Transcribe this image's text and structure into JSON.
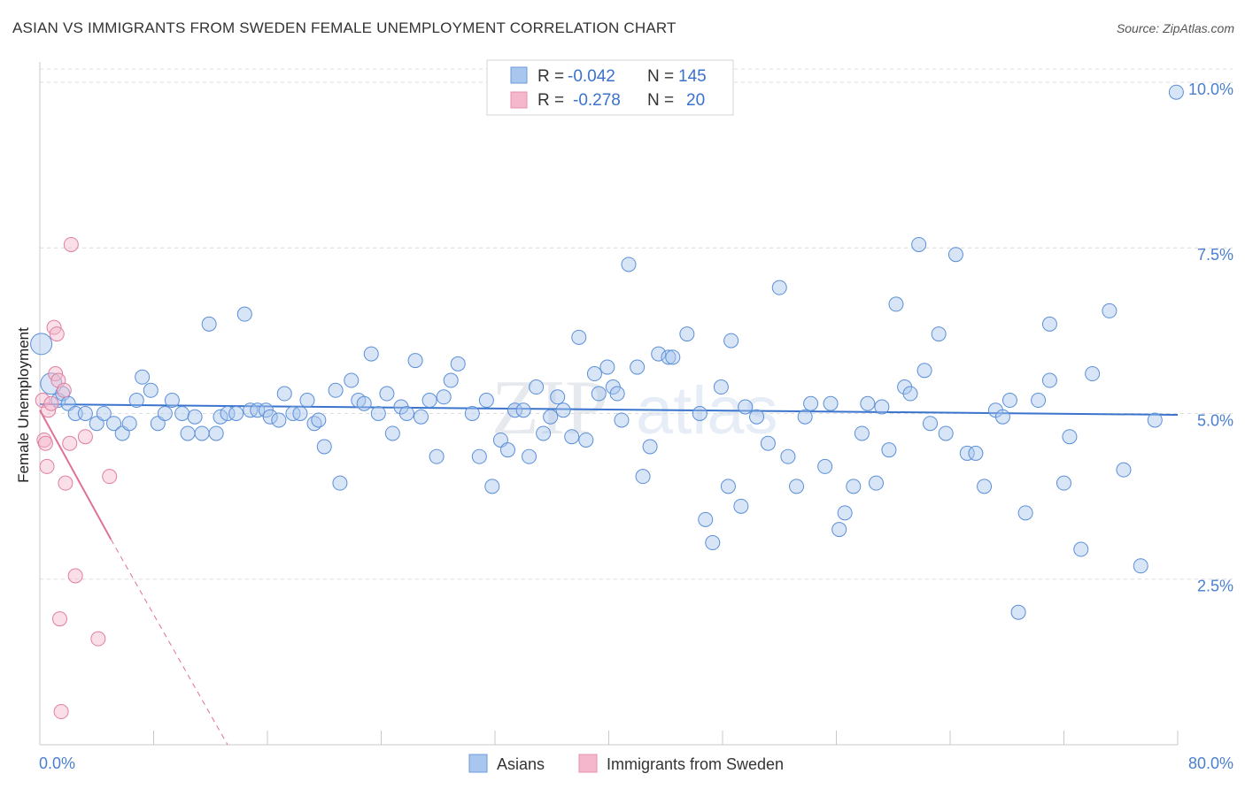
{
  "header": {
    "title": "ASIAN VS IMMIGRANTS FROM SWEDEN FEMALE UNEMPLOYMENT CORRELATION CHART",
    "source": "Source: ZipAtlas.com"
  },
  "legend": {
    "rows": [
      {
        "r_label": "R =",
        "r_value": "-0.042",
        "n_label": "N =",
        "n_value": "145",
        "color": "#a9c6ee"
      },
      {
        "r_label": "R =",
        "r_value": "-0.278",
        "n_label": "N =",
        "n_value": "20",
        "color": "#f5b7cb"
      }
    ]
  },
  "bottom_legend": [
    {
      "label": "Asians",
      "color": "#a9c6ee"
    },
    {
      "label": "Immigrants from Sweden",
      "color": "#f5b7cb"
    }
  ],
  "watermark": {
    "part1": "ZIP",
    "part2": "atlas"
  },
  "chart_data": {
    "type": "scatter",
    "title": "ASIAN VS IMMIGRANTS FROM SWEDEN FEMALE UNEMPLOYMENT CORRELATION CHART",
    "ylabel": "Female Unemployment",
    "xlabel": "",
    "xlim": [
      0,
      80
    ],
    "ylim": [
      0,
      10.2
    ],
    "x_tick_labels": [
      "0.0%",
      "80.0%"
    ],
    "y_ticks": [
      2.5,
      5.0,
      7.5,
      10.0
    ],
    "y_tick_labels": [
      "2.5%",
      "5.0%",
      "7.5%",
      "10.0%"
    ],
    "grid": "horizontal dashed",
    "series": [
      {
        "name": "Asians",
        "color": "#a9c6ee",
        "stroke": "#5b8fd8",
        "trend": {
          "x": [
            0,
            80
          ],
          "y": [
            5.14,
            4.98
          ],
          "color": "#3a74cc"
        },
        "points": [
          [
            0.1,
            6.05
          ],
          [
            0.8,
            5.45
          ],
          [
            1.3,
            5.2
          ],
          [
            1.6,
            5.3
          ],
          [
            2.0,
            5.15
          ],
          [
            2.5,
            5.0
          ],
          [
            3.2,
            5.0
          ],
          [
            4.0,
            4.85
          ],
          [
            4.5,
            5.0
          ],
          [
            5.2,
            4.85
          ],
          [
            5.8,
            4.7
          ],
          [
            6.3,
            4.85
          ],
          [
            6.8,
            5.2
          ],
          [
            7.2,
            5.55
          ],
          [
            7.8,
            5.35
          ],
          [
            8.3,
            4.85
          ],
          [
            8.8,
            5.0
          ],
          [
            9.3,
            5.2
          ],
          [
            10.0,
            5.0
          ],
          [
            10.4,
            4.7
          ],
          [
            10.9,
            4.95
          ],
          [
            11.4,
            4.7
          ],
          [
            12.4,
            4.7
          ],
          [
            12.7,
            4.95
          ],
          [
            11.9,
            6.35
          ],
          [
            13.2,
            5.0
          ],
          [
            13.8,
            5.0
          ],
          [
            14.4,
            6.5
          ],
          [
            14.8,
            5.05
          ],
          [
            15.3,
            5.05
          ],
          [
            15.9,
            5.05
          ],
          [
            16.2,
            4.95
          ],
          [
            16.8,
            4.9
          ],
          [
            17.2,
            5.3
          ],
          [
            17.8,
            5.0
          ],
          [
            18.3,
            5.0
          ],
          [
            18.8,
            5.2
          ],
          [
            19.3,
            4.85
          ],
          [
            19.6,
            4.9
          ],
          [
            20.0,
            4.5
          ],
          [
            20.8,
            5.35
          ],
          [
            21.1,
            3.95
          ],
          [
            21.9,
            5.5
          ],
          [
            22.4,
            5.2
          ],
          [
            22.8,
            5.15
          ],
          [
            23.3,
            5.9
          ],
          [
            23.8,
            5.0
          ],
          [
            24.4,
            5.3
          ],
          [
            24.8,
            4.7
          ],
          [
            25.4,
            5.1
          ],
          [
            25.8,
            5.0
          ],
          [
            26.4,
            5.8
          ],
          [
            26.8,
            4.95
          ],
          [
            27.4,
            5.2
          ],
          [
            27.9,
            4.35
          ],
          [
            28.4,
            5.25
          ],
          [
            28.9,
            5.5
          ],
          [
            29.4,
            5.75
          ],
          [
            30.4,
            5.0
          ],
          [
            30.9,
            4.35
          ],
          [
            31.4,
            5.2
          ],
          [
            31.8,
            3.9
          ],
          [
            32.4,
            4.6
          ],
          [
            32.9,
            4.45
          ],
          [
            33.4,
            5.05
          ],
          [
            34.0,
            5.05
          ],
          [
            34.4,
            4.35
          ],
          [
            34.9,
            5.4
          ],
          [
            35.4,
            4.7
          ],
          [
            35.9,
            4.95
          ],
          [
            36.4,
            5.25
          ],
          [
            36.8,
            5.05
          ],
          [
            37.4,
            4.65
          ],
          [
            37.9,
            6.15
          ],
          [
            38.4,
            4.6
          ],
          [
            39.0,
            5.6
          ],
          [
            39.3,
            5.3
          ],
          [
            39.9,
            5.7
          ],
          [
            40.3,
            5.4
          ],
          [
            40.6,
            5.3
          ],
          [
            40.9,
            4.9
          ],
          [
            41.4,
            7.25
          ],
          [
            42.0,
            5.7
          ],
          [
            42.4,
            4.05
          ],
          [
            42.9,
            4.5
          ],
          [
            43.5,
            5.9
          ],
          [
            44.2,
            5.85
          ],
          [
            44.5,
            5.85
          ],
          [
            45.5,
            6.2
          ],
          [
            46.4,
            5.0
          ],
          [
            46.8,
            3.4
          ],
          [
            47.3,
            3.05
          ],
          [
            47.9,
            5.4
          ],
          [
            48.4,
            3.9
          ],
          [
            48.6,
            6.1
          ],
          [
            49.3,
            3.6
          ],
          [
            49.6,
            5.1
          ],
          [
            50.4,
            4.95
          ],
          [
            51.2,
            4.55
          ],
          [
            52.0,
            6.9
          ],
          [
            52.6,
            4.35
          ],
          [
            53.2,
            3.9
          ],
          [
            53.8,
            4.95
          ],
          [
            54.2,
            5.15
          ],
          [
            55.2,
            4.2
          ],
          [
            55.6,
            5.15
          ],
          [
            56.2,
            3.25
          ],
          [
            56.6,
            3.5
          ],
          [
            57.2,
            3.9
          ],
          [
            57.8,
            4.7
          ],
          [
            58.2,
            5.15
          ],
          [
            58.8,
            3.95
          ],
          [
            59.2,
            5.1
          ],
          [
            59.7,
            4.45
          ],
          [
            60.2,
            6.65
          ],
          [
            60.8,
            5.4
          ],
          [
            61.2,
            5.3
          ],
          [
            61.8,
            7.55
          ],
          [
            62.2,
            5.65
          ],
          [
            62.6,
            4.85
          ],
          [
            63.2,
            6.2
          ],
          [
            63.7,
            4.7
          ],
          [
            64.4,
            7.4
          ],
          [
            65.2,
            4.4
          ],
          [
            65.8,
            4.4
          ],
          [
            66.4,
            3.9
          ],
          [
            67.2,
            5.05
          ],
          [
            67.7,
            4.95
          ],
          [
            68.2,
            5.2
          ],
          [
            68.8,
            2.0
          ],
          [
            69.3,
            3.5
          ],
          [
            70.2,
            5.2
          ],
          [
            71.0,
            5.5
          ],
          [
            71.0,
            6.35
          ],
          [
            72.0,
            3.95
          ],
          [
            72.4,
            4.65
          ],
          [
            73.2,
            2.95
          ],
          [
            74.0,
            5.6
          ],
          [
            75.2,
            6.55
          ],
          [
            76.2,
            4.15
          ],
          [
            77.4,
            2.7
          ],
          [
            78.4,
            4.9
          ],
          [
            79.9,
            9.85
          ]
        ]
      },
      {
        "name": "Immigrants from Sweden",
        "color": "#f5b7cb",
        "stroke": "#e07fa0",
        "trend": {
          "x": [
            0,
            5.0
          ],
          "y": [
            5.05,
            3.1
          ],
          "dash_to": [
            13.2,
            0
          ],
          "color": "#e0709a"
        },
        "points": [
          [
            0.2,
            5.2
          ],
          [
            0.3,
            4.6
          ],
          [
            0.4,
            4.55
          ],
          [
            0.5,
            4.2
          ],
          [
            0.6,
            5.05
          ],
          [
            0.8,
            5.15
          ],
          [
            1.0,
            6.3
          ],
          [
            1.1,
            5.6
          ],
          [
            1.2,
            6.2
          ],
          [
            1.3,
            5.5
          ],
          [
            1.4,
            1.9
          ],
          [
            1.5,
            0.5
          ],
          [
            1.7,
            5.35
          ],
          [
            1.8,
            3.95
          ],
          [
            2.1,
            4.55
          ],
          [
            2.2,
            7.55
          ],
          [
            2.5,
            2.55
          ],
          [
            3.2,
            4.65
          ],
          [
            4.1,
            1.6
          ],
          [
            4.9,
            4.05
          ]
        ]
      }
    ]
  }
}
